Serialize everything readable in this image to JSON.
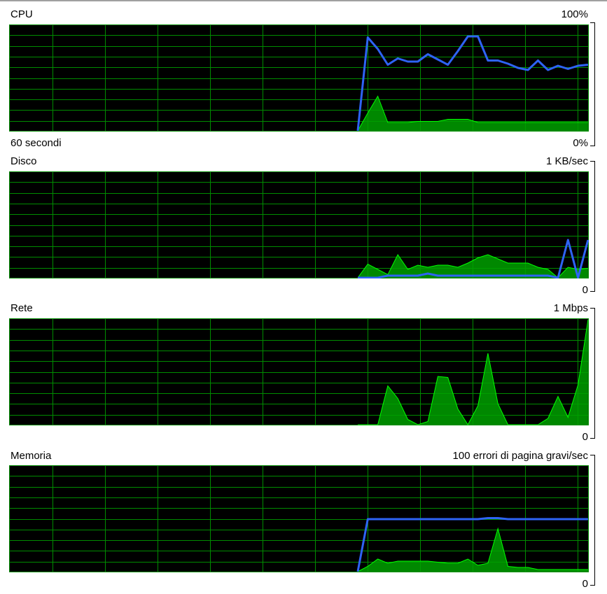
{
  "cpu": {
    "label": "CPU",
    "max_label": "100%",
    "min_label": "0%",
    "time_label": "60 secondi",
    "utilization": [
      0,
      89,
      78,
      63,
      69,
      66,
      66,
      73,
      68,
      63,
      76,
      90,
      90,
      67,
      67,
      64,
      60,
      58,
      67,
      58,
      62,
      59,
      62,
      63
    ],
    "kernel": [
      0,
      17,
      33,
      8,
      8,
      8,
      9,
      9,
      9,
      11,
      11,
      11,
      8,
      8,
      8,
      8,
      8,
      8,
      8,
      8,
      8,
      8,
      8,
      8
    ]
  },
  "disk": {
    "label": "Disco",
    "max_label": "1 KB/sec",
    "min_label": "0",
    "activity": [
      0,
      13,
      8,
      3,
      22,
      8,
      12,
      10,
      12,
      12,
      10,
      14,
      19,
      22,
      18,
      14,
      14,
      14,
      10,
      8,
      0,
      10,
      8,
      9
    ],
    "active_time": [
      0,
      0,
      0,
      2,
      2,
      2,
      2,
      4,
      2,
      2,
      2,
      2,
      2,
      2,
      2,
      2,
      2,
      2,
      2,
      2,
      0,
      36,
      0,
      36
    ]
  },
  "network": {
    "label": "Rete",
    "max_label": "1 Mbps",
    "min_label": "0",
    "utilization": [
      0,
      0,
      0,
      37,
      25,
      5,
      0,
      3,
      46,
      45,
      15,
      0,
      18,
      68,
      20,
      0,
      0,
      0,
      0,
      6,
      27,
      7,
      38,
      100
    ]
  },
  "memory": {
    "label": "Memoria",
    "max_label": "100 errori di pagina gravi/sec",
    "min_label": "0",
    "used": [
      0,
      50,
      50,
      50,
      50,
      50,
      50,
      50,
      50,
      50,
      50,
      50,
      50,
      51,
      51,
      50,
      50,
      50,
      50,
      50,
      50,
      50,
      50,
      50
    ],
    "hard_faults": [
      0,
      5,
      12,
      8,
      10,
      10,
      10,
      10,
      9,
      8,
      8,
      12,
      6,
      8,
      41,
      5,
      4,
      4,
      2,
      2,
      2,
      2,
      2,
      2
    ]
  },
  "colors": {
    "grid": "#008c00",
    "area_fill": "#00a000",
    "area_stroke": "#00ff00",
    "line": "#2e63f5"
  }
}
